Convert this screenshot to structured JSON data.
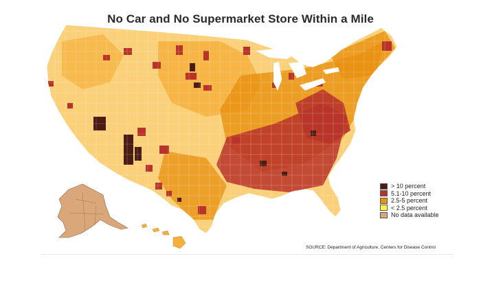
{
  "title": "No Car and No Supermarket Store Within a Mile",
  "legend": {
    "items": [
      {
        "label": "> 10 percent",
        "color": "#4a1c14"
      },
      {
        "label": "5.1-10 percent",
        "color": "#b8342a"
      },
      {
        "label": "2.5-5 percent",
        "color": "#e8900f"
      },
      {
        "label": "< 2.5 percent",
        "color": "#fff04a"
      },
      {
        "label": "No data available",
        "color": "#d9a77a"
      }
    ]
  },
  "source": "SOURCE: Department of Agriculture, Centers for Disease Control",
  "palette": {
    "base_light": "#fbd07a",
    "base_mid": "#f5b03c",
    "orange": "#e8900f",
    "red": "#b8342a",
    "dark": "#4a1c14",
    "alaska": "#d9a77a",
    "outline": "#ffffff"
  }
}
